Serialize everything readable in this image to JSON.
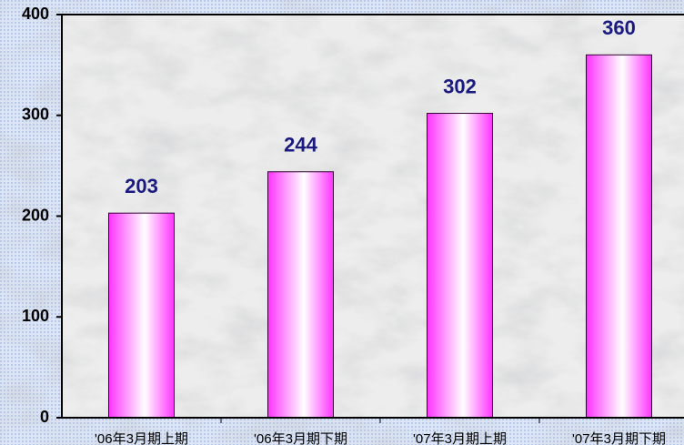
{
  "chart_data": {
    "type": "bar",
    "categories": [
      "'06年3月期上期",
      "'06年3月期下期",
      "'07年3月期上期",
      "'07年3月期下期"
    ],
    "values": [
      203,
      244,
      302,
      360
    ],
    "color": "#ff33ff",
    "ylim": [
      0,
      400
    ],
    "yticks": [
      0,
      100,
      200,
      300,
      400
    ]
  }
}
